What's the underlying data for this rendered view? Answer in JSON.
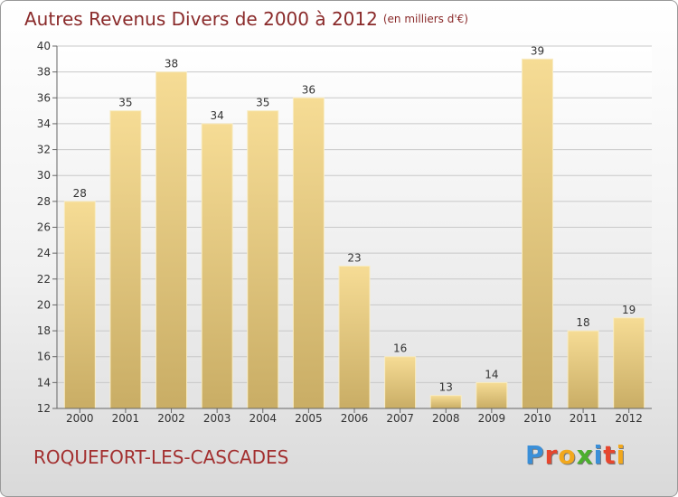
{
  "header": {
    "title": "Autres Revenus Divers de 2000 à 2012",
    "unit": "(en milliers d'€)"
  },
  "footer": {
    "commune": "ROQUEFORT-LES-CASCADES",
    "brand_letters": [
      "P",
      "r",
      "o",
      "x",
      "i",
      "t",
      "i"
    ],
    "brand_colors": [
      "#3a8fd8",
      "#e6462e",
      "#f2a81d",
      "#4caf2e",
      "#3a8fd8",
      "#e6462e",
      "#f2a81d"
    ]
  },
  "chart_data": {
    "type": "bar",
    "categories": [
      "2000",
      "2001",
      "2002",
      "2003",
      "2004",
      "2005",
      "2006",
      "2007",
      "2008",
      "2009",
      "2010",
      "2011",
      "2012"
    ],
    "values": [
      28,
      35,
      38,
      34,
      35,
      36,
      23,
      16,
      13,
      14,
      39,
      18,
      19
    ],
    "title": "Autres Revenus Divers de 2000 à 2012",
    "subtitle": "(en milliers d'€)",
    "xlabel": "",
    "ylabel": "",
    "ylim": [
      12,
      40
    ],
    "yticks": [
      12,
      14,
      16,
      18,
      20,
      22,
      24,
      26,
      28,
      30,
      32,
      34,
      36,
      38,
      40
    ],
    "grid": true,
    "legend": "none",
    "bar_color": "#e6cd85"
  }
}
